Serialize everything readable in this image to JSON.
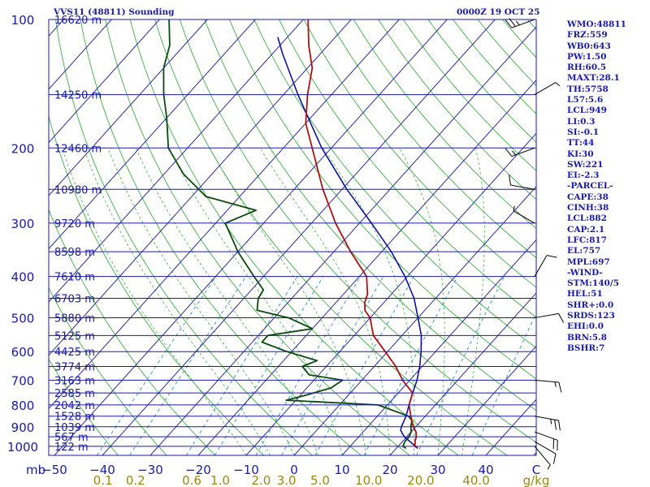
{
  "title": "VVS11 (48811) Sounding",
  "timestamp": "0000Z 19 OCT 25",
  "colors": {
    "isobar": "#1a1aa8",
    "isotherm": "#2a2aa8",
    "dry_adiabat": "#3cb043",
    "moist_adiabat": "#3cb043",
    "mixing_ratio": "#3a9ad0",
    "temperature": "#b01010",
    "dewpoint": "#0a4a0a",
    "parcel": "#1010a0",
    "label_blue": "#1a1aa8",
    "label_olive": "#9a8a10"
  },
  "chart_data": {
    "type": "skew-t",
    "title": "VVS11 (48811) Sounding",
    "pressure_axis_label": "mb",
    "pressure_ticks": [
      "100",
      "200",
      "300",
      "400",
      "500",
      "600",
      "700",
      "800",
      "900",
      "1000"
    ],
    "temperature_ticks": [
      "−50",
      "−40",
      "−30",
      "−20",
      "−10",
      "0",
      "10",
      "20",
      "30",
      "40",
      "C"
    ],
    "mixing_ratio_ticks": [
      "0.1",
      "0.2",
      "0.6",
      "1.0",
      "2.0",
      "3.0",
      "5.0",
      "10.0",
      "20.0",
      "40.0",
      "g/kg"
    ],
    "heights": [
      {
        "p": 100,
        "label": "16620 m"
      },
      {
        "p": 150,
        "label": "14250 m"
      },
      {
        "p": 200,
        "label": "12460 m"
      },
      {
        "p": 250,
        "label": "10980 m"
      },
      {
        "p": 300,
        "label": "9720 m"
      },
      {
        "p": 350,
        "label": "8598 m"
      },
      {
        "p": 400,
        "label": "7610 m"
      },
      {
        "p": 450,
        "label": "6703 m"
      },
      {
        "p": 500,
        "label": "5880 m"
      },
      {
        "p": 550,
        "label": "5125 m"
      },
      {
        "p": 600,
        "label": "4425 m"
      },
      {
        "p": 650,
        "label": "3774 m"
      },
      {
        "p": 700,
        "label": "3163 m"
      },
      {
        "p": 750,
        "label": "2585 m"
      },
      {
        "p": 800,
        "label": "2042 m"
      },
      {
        "p": 850,
        "label": "1528 m"
      },
      {
        "p": 900,
        "label": "1039 m"
      },
      {
        "p": 950,
        "label": "567 m"
      },
      {
        "p": 1000,
        "label": "122 m"
      }
    ],
    "temperature_profile": [
      [
        1011,
        24.5
      ],
      [
        1000,
        23.5
      ],
      [
        970,
        22.5
      ],
      [
        950,
        22
      ],
      [
        925,
        21
      ],
      [
        900,
        19.5
      ],
      [
        850,
        17
      ],
      [
        800,
        14.5
      ],
      [
        750,
        13
      ],
      [
        700,
        8.5
      ],
      [
        650,
        4.5
      ],
      [
        600,
        -0.5
      ],
      [
        550,
        -6
      ],
      [
        500,
        -10
      ],
      [
        480,
        -12.5
      ],
      [
        460,
        -14
      ],
      [
        440,
        -15
      ],
      [
        400,
        -18.5
      ],
      [
        350,
        -26.5
      ],
      [
        300,
        -35
      ],
      [
        250,
        -44
      ],
      [
        200,
        -54
      ],
      [
        175,
        -60
      ],
      [
        150,
        -65
      ],
      [
        130,
        -69
      ],
      [
        115,
        -74
      ],
      [
        100,
        -79
      ]
    ],
    "dewpoint_profile": [
      [
        1011,
        22
      ],
      [
        1000,
        21
      ],
      [
        975,
        20.5
      ],
      [
        950,
        20.5
      ],
      [
        925,
        20
      ],
      [
        900,
        19
      ],
      [
        870,
        18
      ],
      [
        850,
        16.5
      ],
      [
        800,
        8
      ],
      [
        780,
        -12
      ],
      [
        760,
        -9
      ],
      [
        730,
        -5
      ],
      [
        700,
        -4
      ],
      [
        680,
        -12
      ],
      [
        650,
        -15
      ],
      [
        630,
        -13
      ],
      [
        600,
        -21
      ],
      [
        570,
        -28
      ],
      [
        550,
        -28
      ],
      [
        530,
        -20
      ],
      [
        500,
        -27
      ],
      [
        480,
        -35
      ],
      [
        450,
        -37
      ],
      [
        430,
        -37.5
      ],
      [
        400,
        -42
      ],
      [
        350,
        -50
      ],
      [
        300,
        -58
      ],
      [
        280,
        -54
      ],
      [
        260,
        -67
      ],
      [
        230,
        -76
      ],
      [
        200,
        -84
      ],
      [
        170,
        -90
      ],
      [
        150,
        -95
      ],
      [
        130,
        -100
      ],
      [
        115,
        -103
      ],
      [
        100,
        -108
      ]
    ],
    "parcel_profile": [
      [
        1011,
        24.5
      ],
      [
        950,
        19.5
      ],
      [
        917,
        17.5
      ],
      [
        900,
        17
      ],
      [
        850,
        16
      ],
      [
        800,
        14.5
      ],
      [
        750,
        13
      ],
      [
        700,
        11.5
      ],
      [
        650,
        9.5
      ],
      [
        600,
        7
      ],
      [
        550,
        4
      ],
      [
        500,
        0
      ],
      [
        450,
        -4.5
      ],
      [
        400,
        -10.5
      ],
      [
        350,
        -18
      ],
      [
        300,
        -27.5
      ],
      [
        250,
        -39
      ],
      [
        200,
        -52
      ],
      [
        150,
        -67
      ],
      [
        120,
        -78
      ],
      [
        110,
        -82
      ]
    ],
    "wind_barbs": [
      {
        "p": 1000,
        "dir": 140,
        "speed": 5
      },
      {
        "p": 975,
        "dir": 120,
        "speed": 10
      },
      {
        "p": 925,
        "dir": 110,
        "speed": 20
      },
      {
        "p": 850,
        "dir": 100,
        "speed": 25
      },
      {
        "p": 700,
        "dir": 95,
        "speed": 15
      },
      {
        "p": 500,
        "dir": 80,
        "speed": 10
      },
      {
        "p": 400,
        "dir": 30,
        "speed": 10
      },
      {
        "p": 300,
        "dir": 300,
        "speed": 5
      },
      {
        "p": 250,
        "dir": 280,
        "speed": 10
      },
      {
        "p": 200,
        "dir": 250,
        "speed": 15
      },
      {
        "p": 150,
        "dir": 60,
        "speed": 5
      },
      {
        "p": 100,
        "dir": 250,
        "speed": 25
      }
    ]
  },
  "indices": [
    "WMO:48811",
    "FRZ:559",
    "WB0:643",
    "PW:1.50",
    "RH:60.5",
    "MAXT:28.1",
    "TH:5758",
    "L57:5.6",
    "LCL:949",
    "LI:0.3",
    "SI:-0.1",
    "TT:44",
    "KI:30",
    "SW:221",
    "EI:-2.3",
    "-PARCEL-",
    "CAPE:38",
    "CINH:38",
    "LCL:882",
    "CAP:2.1",
    "LFC:817",
    "EL:757",
    "MPL:697",
    "-WIND-",
    "STM:140/5",
    "HEL:51",
    "SHR+:0.0",
    "SRDS:123",
    "EHI:0.0",
    "BRN:5.8",
    "BSHR:7"
  ]
}
